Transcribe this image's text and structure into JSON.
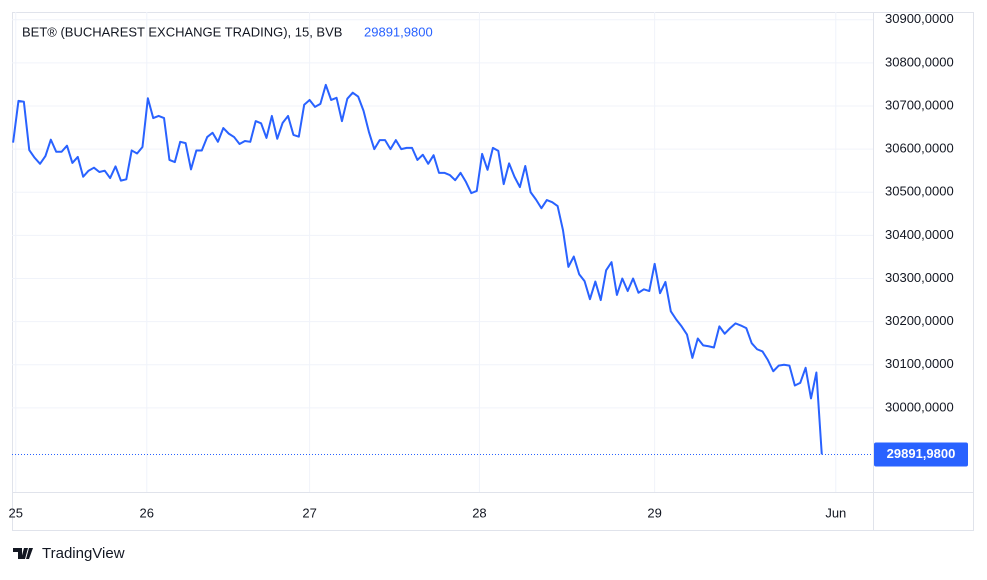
{
  "chart_data": {
    "type": "line",
    "title": "BET® (BUCHAREST EXCHANGE TRADING), 15, BVB",
    "color": "#2962ff",
    "last_price": {
      "value": 29891.98,
      "label": "29891,9800"
    },
    "values": [
      30615,
      30712,
      30710,
      30598,
      30580,
      30566,
      30584,
      30622,
      30594,
      30594,
      30608,
      30568,
      30582,
      30536,
      30550,
      30557,
      30547,
      30550,
      30533,
      30560,
      30527,
      30530,
      30597,
      30590,
      30605,
      30718,
      30672,
      30677,
      30672,
      30575,
      30570,
      30617,
      30614,
      30553,
      30597,
      30597,
      30628,
      30638,
      30617,
      30649,
      30636,
      30628,
      30612,
      30619,
      30617,
      30665,
      30660,
      30626,
      30677,
      30624,
      30661,
      30677,
      30633,
      30629,
      30703,
      30714,
      30698,
      30705,
      30749,
      30714,
      30719,
      30665,
      30717,
      30731,
      30722,
      30689,
      30640,
      30600,
      30621,
      30621,
      30600,
      30621,
      30600,
      30603,
      30603,
      30575,
      30587,
      30566,
      30586,
      30545,
      30545,
      30540,
      30528,
      30545,
      30524,
      30498,
      30503,
      30589,
      30552,
      30603,
      30596,
      30519,
      30567,
      30536,
      30512,
      30561,
      30500,
      30483,
      30463,
      30482,
      30477,
      30468,
      30412,
      30327,
      30351,
      30310,
      30294,
      30252,
      30293,
      30250,
      30319,
      30338,
      30262,
      30300,
      30271,
      30300,
      30267,
      30275,
      30271,
      30334,
      30266,
      30292,
      30224,
      30205,
      30189,
      30170,
      30116,
      30161,
      30145,
      30143,
      30140,
      30189,
      30172,
      30185,
      30196,
      30191,
      30185,
      30150,
      30136,
      30131,
      30111,
      30085,
      30098,
      30100,
      30098,
      30052,
      30058,
      30093,
      30022,
      30082,
      29891.98
    ],
    "xlim": [
      -0.2,
      159.5
    ],
    "xticks": [
      {
        "value": 0.5,
        "label": "25"
      },
      {
        "value": 24.8,
        "label": "26"
      },
      {
        "value": 55,
        "label": "27"
      },
      {
        "value": 86.5,
        "label": "28"
      },
      {
        "value": 119,
        "label": "29"
      },
      {
        "value": 152.6,
        "label": "Jun"
      }
    ],
    "ylim": [
      29805,
      30918
    ],
    "yticks": [
      {
        "value": 30000,
        "label": "30000,0000"
      },
      {
        "value": 30100,
        "label": "30100,0000"
      },
      {
        "value": 30200,
        "label": "30200,0000"
      },
      {
        "value": 30300,
        "label": "30300,0000"
      },
      {
        "value": 30400,
        "label": "30400,0000"
      },
      {
        "value": 30500,
        "label": "30500,0000"
      },
      {
        "value": 30600,
        "label": "30600,0000"
      },
      {
        "value": 30700,
        "label": "30700,0000"
      },
      {
        "value": 30800,
        "label": "30800,0000"
      },
      {
        "value": 30900,
        "label": "30900,0000"
      }
    ],
    "grid": true
  },
  "footer": {
    "brand": "TradingView"
  }
}
